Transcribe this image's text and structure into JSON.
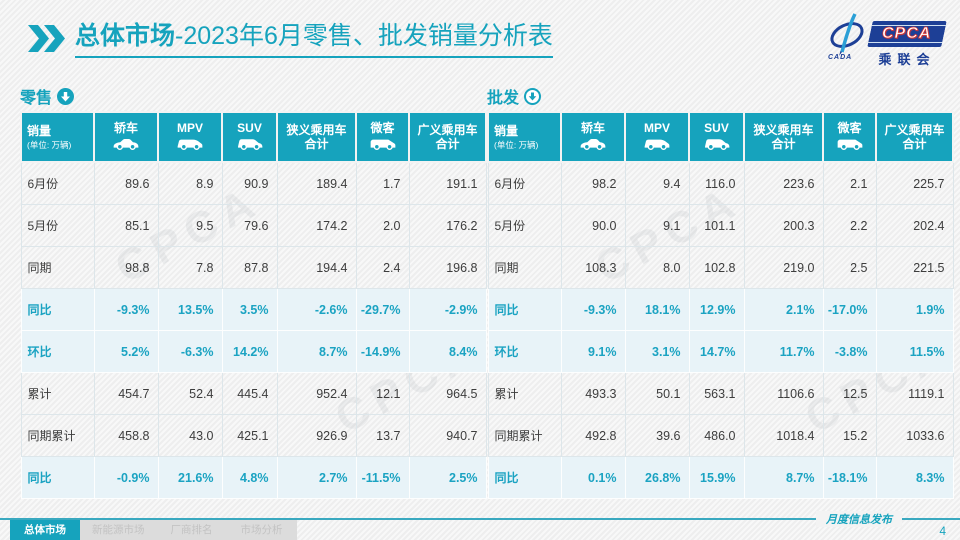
{
  "page": {
    "accent": "#16a3bd",
    "page_number": "4",
    "footer_note": "月度信息发布"
  },
  "header": {
    "chevron_icon": "double-chevron-right-icon",
    "title_bold": "总体市场",
    "title_rest": "-2023年6月零售、批发销量分析表"
  },
  "logo": {
    "cpca": "CPCA",
    "cada": "CADA",
    "cn_name": "乘联会",
    "navy": "#1d3f96",
    "red": "#e8382d"
  },
  "watermark": "CPCA",
  "columns": [
    {
      "label": "销量",
      "sublabel": "(单位: 万辆)",
      "icon": null
    },
    {
      "label": "轿车",
      "icon": "sedan-icon"
    },
    {
      "label": "MPV",
      "icon": "mpv-icon"
    },
    {
      "label": "SUV",
      "icon": "suv-icon"
    },
    {
      "label": "狭义乘用车",
      "label2": "合计",
      "icon": null
    },
    {
      "label": "微客",
      "icon": "minivan-icon"
    },
    {
      "label": "广义乘用车",
      "label2": "合计",
      "icon": null
    }
  ],
  "tables": [
    {
      "section_label": "零售",
      "arrow_icon": "solid-circle-down-arrow-icon",
      "rows": [
        {
          "label": "6月份",
          "highlight": false,
          "values": [
            "89.6",
            "8.9",
            "90.9",
            "189.4",
            "1.7",
            "191.1"
          ]
        },
        {
          "label": "5月份",
          "highlight": false,
          "values": [
            "85.1",
            "9.5",
            "79.6",
            "174.2",
            "2.0",
            "176.2"
          ]
        },
        {
          "label": "同期",
          "highlight": false,
          "values": [
            "98.8",
            "7.8",
            "87.8",
            "194.4",
            "2.4",
            "196.8"
          ]
        },
        {
          "label": "同比",
          "highlight": true,
          "values": [
            "-9.3%",
            "13.5%",
            "3.5%",
            "-2.6%",
            "-29.7%",
            "-2.9%"
          ]
        },
        {
          "label": "环比",
          "highlight": true,
          "values": [
            "5.2%",
            "-6.3%",
            "14.2%",
            "8.7%",
            "-14.9%",
            "8.4%"
          ]
        },
        {
          "label": "累计",
          "highlight": false,
          "values": [
            "454.7",
            "52.4",
            "445.4",
            "952.4",
            "12.1",
            "964.5"
          ]
        },
        {
          "label": "同期累计",
          "highlight": false,
          "values": [
            "458.8",
            "43.0",
            "425.1",
            "926.9",
            "13.7",
            "940.7"
          ]
        },
        {
          "label": "同比",
          "highlight": true,
          "values": [
            "-0.9%",
            "21.6%",
            "4.8%",
            "2.7%",
            "-11.5%",
            "2.5%"
          ]
        }
      ]
    },
    {
      "section_label": "批发",
      "arrow_icon": "outline-circle-down-arrow-icon",
      "rows": [
        {
          "label": "6月份",
          "highlight": false,
          "values": [
            "98.2",
            "9.4",
            "116.0",
            "223.6",
            "2.1",
            "225.7"
          ]
        },
        {
          "label": "5月份",
          "highlight": false,
          "values": [
            "90.0",
            "9.1",
            "101.1",
            "200.3",
            "2.2",
            "202.4"
          ]
        },
        {
          "label": "同期",
          "highlight": false,
          "values": [
            "108.3",
            "8.0",
            "102.8",
            "219.0",
            "2.5",
            "221.5"
          ]
        },
        {
          "label": "同比",
          "highlight": true,
          "values": [
            "-9.3%",
            "18.1%",
            "12.9%",
            "2.1%",
            "-17.0%",
            "1.9%"
          ]
        },
        {
          "label": "环比",
          "highlight": true,
          "values": [
            "9.1%",
            "3.1%",
            "14.7%",
            "11.7%",
            "-3.8%",
            "11.5%"
          ]
        },
        {
          "label": "累计",
          "highlight": false,
          "values": [
            "493.3",
            "50.1",
            "563.1",
            "1106.6",
            "12.5",
            "1119.1"
          ]
        },
        {
          "label": "同期累计",
          "highlight": false,
          "values": [
            "492.8",
            "39.6",
            "486.0",
            "1018.4",
            "15.2",
            "1033.6"
          ]
        },
        {
          "label": "同比",
          "highlight": true,
          "values": [
            "0.1%",
            "26.8%",
            "15.9%",
            "8.7%",
            "-18.1%",
            "8.3%"
          ]
        }
      ]
    }
  ],
  "footer_tabs": [
    {
      "label": "总体市场",
      "active": true
    },
    {
      "label": "新能源市场",
      "active": false
    },
    {
      "label": "厂商排名",
      "active": false
    },
    {
      "label": "市场分析",
      "active": false
    }
  ]
}
